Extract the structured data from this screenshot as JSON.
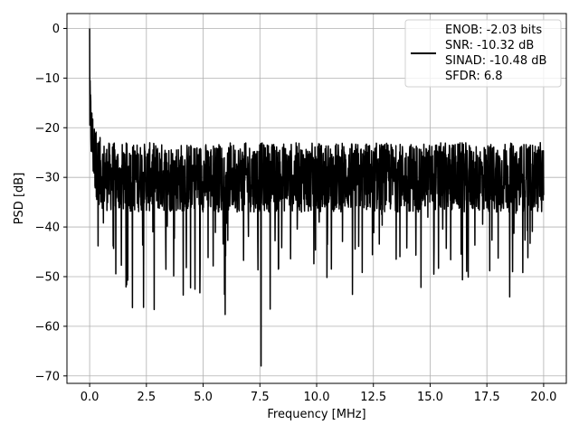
{
  "chart_data": {
    "type": "line",
    "xlabel": "Frequency [MHz]",
    "ylabel": "PSD [dB]",
    "xlim": [
      -1.0,
      21.0
    ],
    "ylim": [
      -71.5,
      3.0
    ],
    "x_ticks": [
      0.0,
      2.5,
      5.0,
      7.5,
      10.0,
      12.5,
      15.0,
      17.5,
      20.0
    ],
    "x_tick_labels": [
      "0.0",
      "2.5",
      "5.0",
      "7.5",
      "10.0",
      "12.5",
      "15.0",
      "17.5",
      "20.0"
    ],
    "y_ticks": [
      0,
      -10,
      -20,
      -30,
      -40,
      -50,
      -60,
      -70
    ],
    "y_tick_labels": [
      "0",
      "−10",
      "−20",
      "−30",
      "−40",
      "−50",
      "−60",
      "−70"
    ],
    "grid": true,
    "legend_position": "top-right",
    "legend_lines": [
      "ENOB: -2.03 bits",
      "SNR: -10.32 dB",
      "SINAD: -10.48 dB",
      "SFDR: 6.8"
    ],
    "line_color": "#000000",
    "series": [
      {
        "x_range": [
          0.0,
          20.0
        ],
        "points": 2048,
        "description_values": {
          "peak": [
            0.0,
            0.0
          ],
          "min": [
            7.55,
            -68.0
          ],
          "typical_upper": -22,
          "typical_lower": -40
        }
      }
    ]
  }
}
